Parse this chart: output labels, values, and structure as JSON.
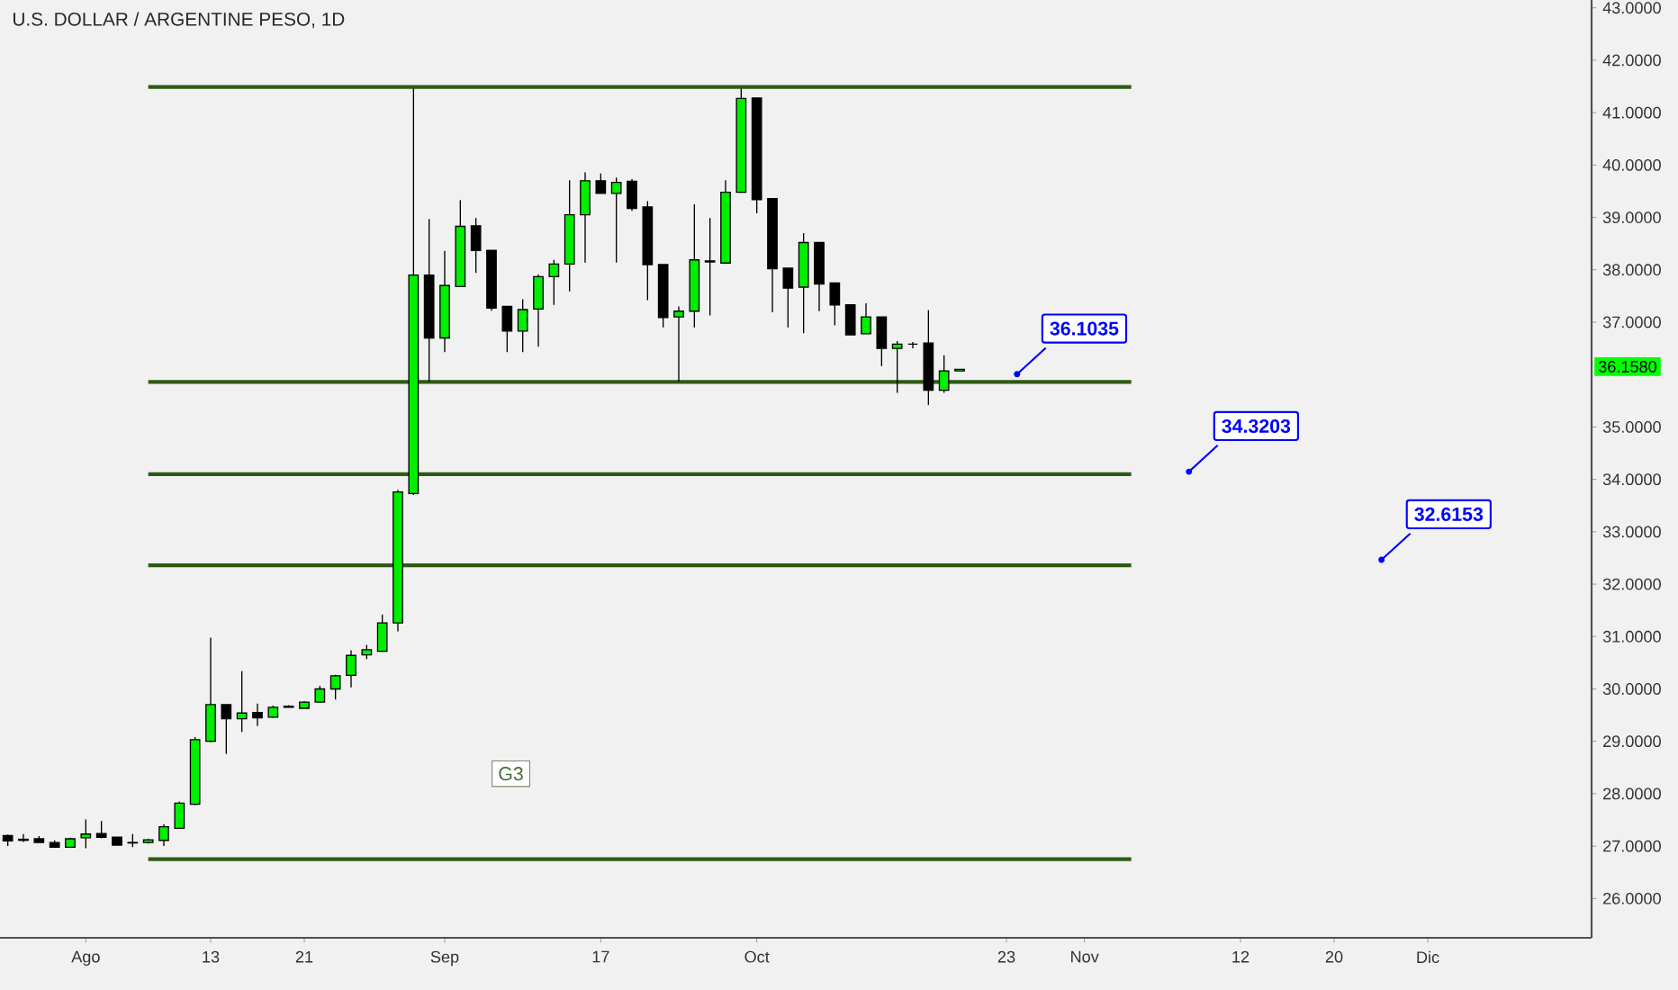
{
  "chart_data": {
    "type": "candlestick",
    "title": "U.S. DOLLAR / ARGENTINE PESO, 1D",
    "categories": [
      null,
      null,
      null,
      null,
      null,
      "Ago",
      null,
      null,
      null,
      null,
      null,
      null,
      null,
      "13",
      null,
      null,
      null,
      null,
      null,
      "21",
      null,
      null,
      null,
      null,
      null,
      null,
      null,
      null,
      "Sep",
      null,
      null,
      null,
      null,
      null,
      null,
      null,
      null,
      null,
      "17",
      null,
      null,
      null,
      null,
      null,
      null,
      null,
      null,
      null,
      "Oct",
      null,
      null,
      null,
      null,
      null,
      null,
      null,
      null,
      null,
      null,
      null,
      null,
      null,
      null,
      null,
      "23",
      null,
      null,
      null,
      null,
      "Nov",
      null,
      null,
      null,
      null,
      null,
      null,
      null,
      null,
      null,
      "12",
      null,
      null,
      null,
      null,
      null,
      "20",
      null,
      null,
      null,
      null,
      null,
      "Dic",
      null,
      null,
      null,
      null,
      null,
      null,
      null,
      null,
      null,
      null
    ],
    "ohlc": [
      [
        27.2,
        27.22,
        27.0,
        27.1
      ],
      [
        27.13,
        27.23,
        27.08,
        27.11
      ],
      [
        27.14,
        27.19,
        27.07,
        27.07
      ],
      [
        27.07,
        27.11,
        26.98,
        26.98
      ],
      [
        26.98,
        27.16,
        26.97,
        27.14
      ],
      [
        27.16,
        27.51,
        26.96,
        27.23
      ],
      [
        27.24,
        27.48,
        27.15,
        27.17
      ],
      [
        27.17,
        27.17,
        27.02,
        27.02
      ],
      [
        27.07,
        27.23,
        26.98,
        27.06
      ],
      [
        27.07,
        27.14,
        27.05,
        27.12
      ],
      [
        27.11,
        27.42,
        27.0,
        27.37
      ],
      [
        27.34,
        27.85,
        27.34,
        27.82
      ],
      [
        27.8,
        29.08,
        27.78,
        29.03
      ],
      [
        29.0,
        30.98,
        28.98,
        29.7
      ],
      [
        29.7,
        29.7,
        28.76,
        29.43
      ],
      [
        29.43,
        30.34,
        29.18,
        29.54
      ],
      [
        29.55,
        29.72,
        29.29,
        29.45
      ],
      [
        29.46,
        29.68,
        29.45,
        29.65
      ],
      [
        29.65,
        29.69,
        29.65,
        29.67
      ],
      [
        29.63,
        29.77,
        29.63,
        29.75
      ],
      [
        29.75,
        30.06,
        29.75,
        30.0
      ],
      [
        30.0,
        30.27,
        29.8,
        30.25
      ],
      [
        30.26,
        30.74,
        30.03,
        30.64
      ],
      [
        30.65,
        30.84,
        30.57,
        30.75
      ],
      [
        30.72,
        31.42,
        30.71,
        31.26
      ],
      [
        31.26,
        33.8,
        31.1,
        33.76
      ],
      [
        33.73,
        41.46,
        33.7,
        37.9
      ],
      [
        37.9,
        38.97,
        35.87,
        36.7
      ],
      [
        36.7,
        38.36,
        36.43,
        37.7
      ],
      [
        37.68,
        39.33,
        37.68,
        38.83
      ],
      [
        38.84,
        38.99,
        37.94,
        38.37
      ],
      [
        38.37,
        38.37,
        37.22,
        37.27
      ],
      [
        37.3,
        37.3,
        36.43,
        36.83
      ],
      [
        36.83,
        37.44,
        36.43,
        37.24
      ],
      [
        37.25,
        37.91,
        36.53,
        37.87
      ],
      [
        37.87,
        38.19,
        37.33,
        38.11
      ],
      [
        38.11,
        39.71,
        37.59,
        39.05
      ],
      [
        39.05,
        39.86,
        38.14,
        39.7
      ],
      [
        39.7,
        39.84,
        39.46,
        39.46
      ],
      [
        39.46,
        39.76,
        38.14,
        39.67
      ],
      [
        39.69,
        39.73,
        39.12,
        39.17
      ],
      [
        39.2,
        39.31,
        37.42,
        38.1
      ],
      [
        38.1,
        38.1,
        36.9,
        37.09
      ],
      [
        37.1,
        37.3,
        35.87,
        37.21
      ],
      [
        37.21,
        39.25,
        36.9,
        38.19
      ],
      [
        38.17,
        38.99,
        37.13,
        38.15
      ],
      [
        38.13,
        39.71,
        38.13,
        39.48
      ],
      [
        39.48,
        41.46,
        39.48,
        41.27
      ],
      [
        41.28,
        41.28,
        39.08,
        39.34
      ],
      [
        39.36,
        39.36,
        37.19,
        38.02
      ],
      [
        38.03,
        38.03,
        36.9,
        37.65
      ],
      [
        37.67,
        38.7,
        36.79,
        38.52
      ],
      [
        38.52,
        38.52,
        37.21,
        37.73
      ],
      [
        37.75,
        37.75,
        36.94,
        37.33
      ],
      [
        37.33,
        37.33,
        36.76,
        36.76
      ],
      [
        36.78,
        37.36,
        36.78,
        37.1
      ],
      [
        37.1,
        37.1,
        36.16,
        36.5
      ],
      [
        36.5,
        36.64,
        35.65,
        36.58
      ],
      [
        36.58,
        36.62,
        36.5,
        36.58
      ],
      [
        36.6,
        37.23,
        35.42,
        35.7
      ],
      [
        35.7,
        36.37,
        35.65,
        36.07
      ],
      [
        36.07,
        36.1,
        36.07,
        36.1
      ],
      null,
      null,
      null,
      null,
      null,
      null,
      null,
      null,
      null,
      null,
      null,
      null,
      null,
      null,
      null,
      null,
      null,
      null,
      null,
      null,
      null,
      null,
      null,
      null,
      null,
      null,
      null,
      null,
      null,
      null,
      null,
      null,
      null,
      null,
      null,
      null,
      null,
      null,
      null,
      null
    ],
    "colors": [
      "#000000",
      "#000000",
      "#000000",
      "#000000",
      "#00ee00",
      "#00ee00",
      "#000000",
      "#000000",
      "#000000",
      "#00ee00",
      "#00ee00",
      "#00ee00",
      "#00ee00",
      "#00ee00",
      "#000000",
      "#00ee00",
      "#000000",
      "#00ee00",
      "#00ee00",
      "#00ee00",
      "#00ee00",
      "#00ee00",
      "#00ee00",
      "#00ee00",
      "#00ee00",
      "#00ee00",
      "#00ee00",
      "#000000",
      "#00ee00",
      "#00ee00",
      "#000000",
      "#000000",
      "#000000",
      "#00ee00",
      "#00ee00",
      "#00ee00",
      "#00ee00",
      "#00ee00",
      "#000000",
      "#00ee00",
      "#000000",
      "#000000",
      "#000000",
      "#00ee00",
      "#00ee00",
      "#000000",
      "#00ee00",
      "#00ee00",
      "#000000",
      "#000000",
      "#000000",
      "#00ee00",
      "#000000",
      "#000000",
      "#000000",
      "#00ee00",
      "#000000",
      "#00ee00",
      "#000000",
      "#000000",
      "#00ee00",
      "#00ee00",
      null,
      null,
      null,
      null,
      null,
      null,
      null,
      null,
      null,
      null,
      null,
      null,
      null,
      null,
      null,
      null,
      null,
      null,
      null,
      null,
      null,
      null,
      null,
      null,
      null,
      null,
      null,
      null,
      null,
      null,
      null,
      null,
      null,
      null,
      null,
      null,
      null,
      null,
      null,
      null
    ],
    "series": [
      {
        "type": "line",
        "color": "#2e5a12",
        "values": [
          null,
          null,
          null,
          null,
          null,
          null,
          null,
          null,
          null,
          41.49,
          41.49,
          41.49,
          41.49,
          41.49,
          41.49,
          41.49,
          41.49,
          41.49,
          41.49,
          41.49,
          41.49,
          41.49,
          41.49,
          41.49,
          41.49,
          41.49,
          41.49,
          41.49,
          41.49,
          41.49,
          41.49,
          41.49,
          41.49,
          41.49,
          41.49,
          41.49,
          41.49,
          41.49,
          41.49,
          41.49,
          41.49,
          41.49,
          41.49,
          41.49,
          41.49,
          41.49,
          41.49,
          41.49,
          41.49,
          41.49,
          41.49,
          41.49,
          41.49,
          41.49,
          41.49,
          41.49,
          41.49,
          41.49,
          41.49,
          41.49,
          41.49,
          41.49,
          41.49,
          41.49,
          41.49,
          41.49,
          41.49,
          41.49,
          41.49,
          41.49,
          41.49,
          41.49,
          41.49,
          null,
          null,
          null,
          null,
          null,
          null,
          null,
          null,
          null,
          null,
          null,
          null,
          null,
          null,
          null,
          null,
          null,
          null,
          null,
          null,
          null,
          null,
          null,
          null,
          null,
          null,
          null,
          null,
          null
        ]
      },
      {
        "type": "line",
        "color": "#2e5a12",
        "values": [
          null,
          null,
          null,
          null,
          null,
          null,
          null,
          null,
          null,
          35.86,
          35.86,
          35.86,
          35.86,
          35.86,
          35.86,
          35.86,
          35.86,
          35.86,
          35.86,
          35.86,
          35.86,
          35.86,
          35.86,
          35.86,
          35.86,
          35.86,
          35.86,
          35.86,
          35.86,
          35.86,
          35.86,
          35.86,
          35.86,
          35.86,
          35.86,
          35.86,
          35.86,
          35.86,
          35.86,
          35.86,
          35.86,
          35.86,
          35.86,
          35.86,
          35.86,
          35.86,
          35.86,
          35.86,
          35.86,
          35.86,
          35.86,
          35.86,
          35.86,
          35.86,
          35.86,
          35.86,
          35.86,
          35.86,
          35.86,
          35.86,
          35.86,
          35.86,
          35.86,
          35.86,
          35.86,
          35.86,
          35.86,
          35.86,
          35.86,
          35.86,
          35.86,
          35.86,
          35.86,
          null,
          null,
          null,
          null,
          null,
          null,
          null,
          null,
          null,
          null,
          null,
          null,
          null,
          null,
          null,
          null,
          null,
          null,
          null,
          null,
          null,
          null,
          null,
          null,
          null,
          null,
          null,
          null,
          null
        ]
      },
      {
        "type": "line",
        "color": "#2e5a12",
        "values": [
          null,
          null,
          null,
          null,
          null,
          null,
          null,
          null,
          null,
          34.1,
          34.1,
          34.1,
          34.1,
          34.1,
          34.1,
          34.1,
          34.1,
          34.1,
          34.1,
          34.1,
          34.1,
          34.1,
          34.1,
          34.1,
          34.1,
          34.1,
          34.1,
          34.1,
          34.1,
          34.1,
          34.1,
          34.1,
          34.1,
          34.1,
          34.1,
          34.1,
          34.1,
          34.1,
          34.1,
          34.1,
          34.1,
          34.1,
          34.1,
          34.1,
          34.1,
          34.1,
          34.1,
          34.1,
          34.1,
          34.1,
          34.1,
          34.1,
          34.1,
          34.1,
          34.1,
          34.1,
          34.1,
          34.1,
          34.1,
          34.1,
          34.1,
          34.1,
          34.1,
          34.1,
          34.1,
          34.1,
          34.1,
          34.1,
          34.1,
          34.1,
          34.1,
          34.1,
          34.1,
          null,
          null,
          null,
          null,
          null,
          null,
          null,
          null,
          null,
          null,
          null,
          null,
          null,
          null,
          null,
          null,
          null,
          null,
          null,
          null,
          null,
          null,
          null,
          null,
          null,
          null,
          null,
          null,
          null
        ]
      },
      {
        "type": "line",
        "color": "#2e5a12",
        "values": [
          null,
          null,
          null,
          null,
          null,
          null,
          null,
          null,
          null,
          32.36,
          32.36,
          32.36,
          32.36,
          32.36,
          32.36,
          32.36,
          32.36,
          32.36,
          32.36,
          32.36,
          32.36,
          32.36,
          32.36,
          32.36,
          32.36,
          32.36,
          32.36,
          32.36,
          32.36,
          32.36,
          32.36,
          32.36,
          32.36,
          32.36,
          32.36,
          32.36,
          32.36,
          32.36,
          32.36,
          32.36,
          32.36,
          32.36,
          32.36,
          32.36,
          32.36,
          32.36,
          32.36,
          32.36,
          32.36,
          32.36,
          32.36,
          32.36,
          32.36,
          32.36,
          32.36,
          32.36,
          32.36,
          32.36,
          32.36,
          32.36,
          32.36,
          32.36,
          32.36,
          32.36,
          32.36,
          32.36,
          32.36,
          32.36,
          32.36,
          32.36,
          32.36,
          32.36,
          32.36,
          null,
          null,
          null,
          null,
          null,
          null,
          null,
          null,
          null,
          null,
          null,
          null,
          null,
          null,
          null,
          null,
          null,
          null,
          null,
          null,
          null,
          null,
          null,
          null,
          null,
          null,
          null,
          null,
          null
        ]
      },
      {
        "type": "line",
        "color": "#2e5a12",
        "values": [
          null,
          null,
          null,
          null,
          null,
          null,
          null,
          null,
          null,
          26.75,
          26.75,
          26.75,
          26.75,
          26.75,
          26.75,
          26.75,
          26.75,
          26.75,
          26.75,
          26.75,
          26.75,
          26.75,
          26.75,
          26.75,
          26.75,
          26.75,
          26.75,
          26.75,
          26.75,
          26.75,
          26.75,
          26.75,
          26.75,
          26.75,
          26.75,
          26.75,
          26.75,
          26.75,
          26.75,
          26.75,
          26.75,
          26.75,
          26.75,
          26.75,
          26.75,
          26.75,
          26.75,
          26.75,
          26.75,
          26.75,
          26.75,
          26.75,
          26.75,
          26.75,
          26.75,
          26.75,
          26.75,
          26.75,
          26.75,
          26.75,
          26.75,
          26.75,
          26.75,
          26.75,
          26.75,
          26.75,
          26.75,
          26.75,
          26.75,
          26.75,
          26.75,
          26.75,
          26.75,
          null,
          null,
          null,
          null,
          null,
          null,
          null,
          null,
          null,
          null,
          null,
          null,
          null,
          null,
          null,
          null,
          null,
          null,
          null,
          null,
          null,
          null,
          null,
          null,
          null,
          null,
          null,
          null,
          null
        ]
      }
    ],
    "annotations": [
      "36.1035",
      "34.3203",
      "32.6153",
      "G3",
      "36.1580"
    ],
    "ylim": [
      25.25,
      43.15
    ],
    "yticks": [
      {
        "value": 26,
        "label": "26.0000"
      },
      {
        "value": 27,
        "label": "27.0000"
      },
      {
        "value": 28,
        "label": "28.0000"
      },
      {
        "value": 29,
        "label": "29.0000"
      },
      {
        "value": 30,
        "label": "30.0000"
      },
      {
        "value": 31,
        "label": "31.0000"
      },
      {
        "value": 32,
        "label": "32.0000"
      },
      {
        "value": 33,
        "label": "33.0000"
      },
      {
        "value": 34,
        "label": "34.0000"
      },
      {
        "value": 35,
        "label": "35.0000"
      },
      {
        "value": 37,
        "label": "37.0000"
      },
      {
        "value": 38,
        "label": "38.0000"
      },
      {
        "value": 39,
        "label": "39.0000"
      },
      {
        "value": 40,
        "label": "40.0000"
      },
      {
        "value": 41,
        "label": "41.0000"
      },
      {
        "value": 42,
        "label": "42.0000"
      },
      {
        "value": 43,
        "label": "43.0000"
      }
    ],
    "grid": false
  }
}
